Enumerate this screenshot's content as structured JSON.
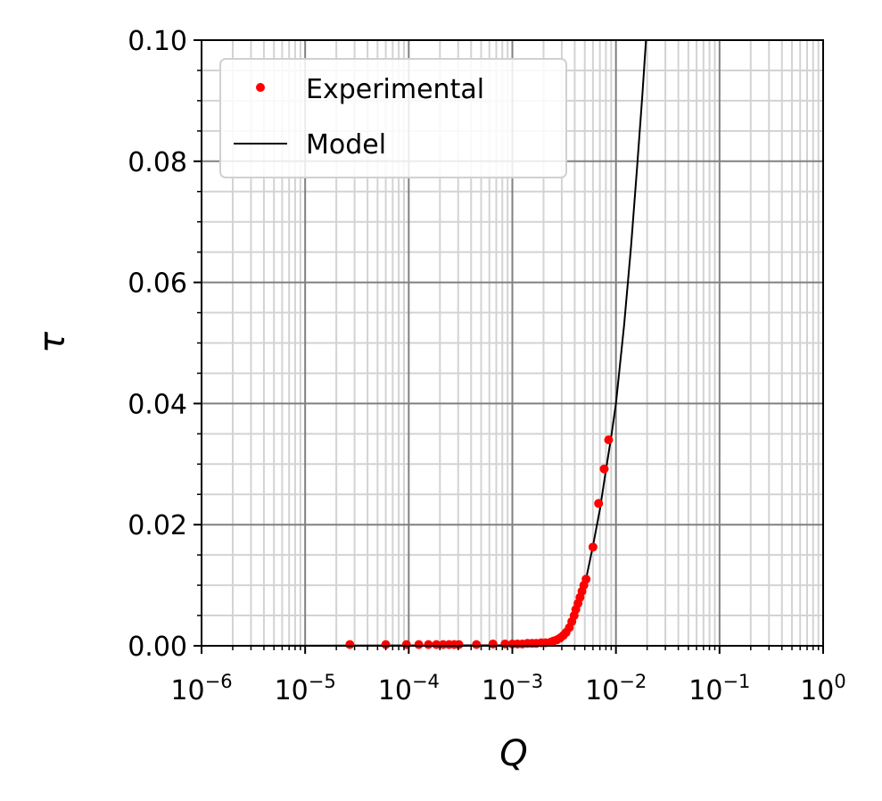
{
  "chart_data": {
    "type": "scatter",
    "xlabel": "Q",
    "ylabel": "τ",
    "xscale": "log",
    "xlim": [
      1e-06,
      1
    ],
    "ylim": [
      0,
      0.1
    ],
    "grid": true,
    "legend_position": "top-left",
    "x_ticks": [
      {
        "base": "10",
        "exp": "−6",
        "value": 1e-06
      },
      {
        "base": "10",
        "exp": "−5",
        "value": 1e-05
      },
      {
        "base": "10",
        "exp": "−4",
        "value": 0.0001
      },
      {
        "base": "10",
        "exp": "−3",
        "value": 0.001
      },
      {
        "base": "10",
        "exp": "−2",
        "value": 0.01
      },
      {
        "base": "10",
        "exp": "−1",
        "value": 0.1
      },
      {
        "base": "10",
        "exp": "0",
        "value": 1
      }
    ],
    "y_ticks": [
      {
        "label": "0.00",
        "value": 0
      },
      {
        "label": "0.02",
        "value": 0.02
      },
      {
        "label": "0.04",
        "value": 0.04
      },
      {
        "label": "0.06",
        "value": 0.06
      },
      {
        "label": "0.08",
        "value": 0.08
      },
      {
        "label": "0.10",
        "value": 0.1
      }
    ],
    "series": [
      {
        "name": "Experimental",
        "kind": "markers",
        "color": "#ff0000",
        "points": [
          {
            "x": 2.7e-05,
            "y": 0.0002
          },
          {
            "x": 6e-05,
            "y": 0.0002
          },
          {
            "x": 9.5e-05,
            "y": 0.0002
          },
          {
            "x": 0.000125,
            "y": 0.0002
          },
          {
            "x": 0.000155,
            "y": 0.0002
          },
          {
            "x": 0.000185,
            "y": 0.0002
          },
          {
            "x": 0.000215,
            "y": 0.0002
          },
          {
            "x": 0.000245,
            "y": 0.0002
          },
          {
            "x": 0.000275,
            "y": 0.0002
          },
          {
            "x": 0.000305,
            "y": 0.0002
          },
          {
            "x": 0.00045,
            "y": 0.0002
          },
          {
            "x": 0.00065,
            "y": 0.0003
          },
          {
            "x": 0.00085,
            "y": 0.0003
          },
          {
            "x": 0.001,
            "y": 0.0003
          },
          {
            "x": 0.00112,
            "y": 0.0003
          },
          {
            "x": 0.00125,
            "y": 0.0003
          },
          {
            "x": 0.0014,
            "y": 0.0004
          },
          {
            "x": 0.00155,
            "y": 0.0004
          },
          {
            "x": 0.0017,
            "y": 0.0004
          },
          {
            "x": 0.0019,
            "y": 0.0005
          },
          {
            "x": 0.0021,
            "y": 0.0005
          },
          {
            "x": 0.00235,
            "y": 0.0006
          },
          {
            "x": 0.0025,
            "y": 0.0008
          },
          {
            "x": 0.0027,
            "y": 0.001
          },
          {
            "x": 0.0029,
            "y": 0.0013
          },
          {
            "x": 0.0031,
            "y": 0.0017
          },
          {
            "x": 0.0033,
            "y": 0.0022
          },
          {
            "x": 0.00355,
            "y": 0.003
          },
          {
            "x": 0.00375,
            "y": 0.004
          },
          {
            "x": 0.00395,
            "y": 0.005
          },
          {
            "x": 0.0041,
            "y": 0.006
          },
          {
            "x": 0.0043,
            "y": 0.007
          },
          {
            "x": 0.0045,
            "y": 0.008
          },
          {
            "x": 0.0047,
            "y": 0.009
          },
          {
            "x": 0.0049,
            "y": 0.01
          },
          {
            "x": 0.00515,
            "y": 0.011
          },
          {
            "x": 0.006,
            "y": 0.0163
          },
          {
            "x": 0.0068,
            "y": 0.0235
          },
          {
            "x": 0.0077,
            "y": 0.0292
          },
          {
            "x": 0.0085,
            "y": 0.034
          }
        ]
      },
      {
        "name": "Model",
        "kind": "line",
        "color": "#000000",
        "points": [
          {
            "x": 1e-06,
            "y": 0
          },
          {
            "x": 0.001,
            "y": 0.0001
          },
          {
            "x": 0.002,
            "y": 0.0003
          },
          {
            "x": 0.0025,
            "y": 0.0006
          },
          {
            "x": 0.003,
            "y": 0.0013
          },
          {
            "x": 0.0035,
            "y": 0.0025
          },
          {
            "x": 0.004,
            "y": 0.0045
          },
          {
            "x": 0.0045,
            "y": 0.007
          },
          {
            "x": 0.005,
            "y": 0.01
          },
          {
            "x": 0.006,
            "y": 0.0165
          },
          {
            "x": 0.007,
            "y": 0.0225
          },
          {
            "x": 0.008,
            "y": 0.029
          },
          {
            "x": 0.009,
            "y": 0.0345
          },
          {
            "x": 0.01,
            "y": 0.04
          },
          {
            "x": 0.012,
            "y": 0.053
          },
          {
            "x": 0.014,
            "y": 0.066
          },
          {
            "x": 0.016,
            "y": 0.079
          },
          {
            "x": 0.018,
            "y": 0.091
          },
          {
            "x": 0.0195,
            "y": 0.1
          }
        ]
      }
    ]
  }
}
